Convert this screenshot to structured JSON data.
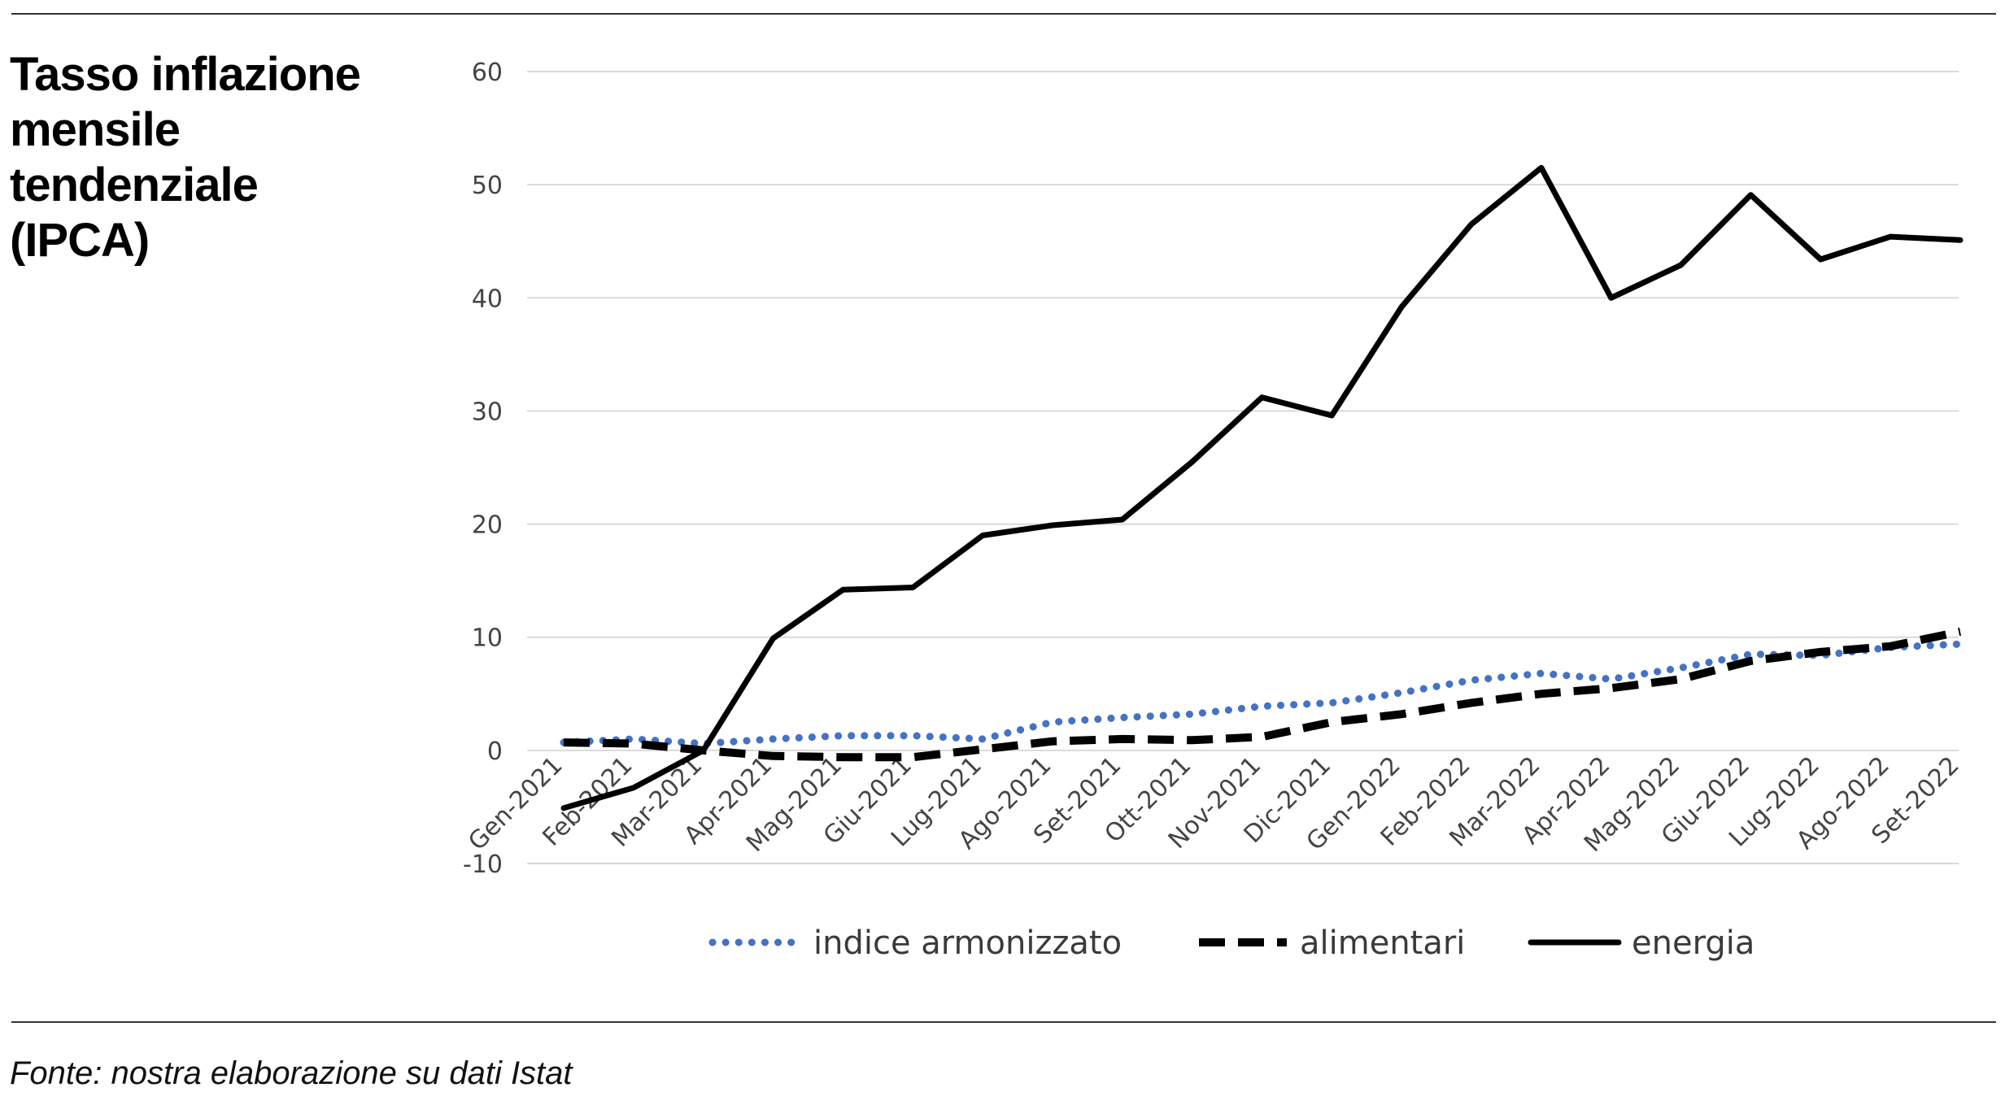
{
  "title_lines": [
    "Tasso inflazione",
    "mensile",
    "tendenziale",
    "(IPCA)"
  ],
  "source": "Fonte: nostra elaborazione su dati Istat",
  "chart_data": {
    "type": "line",
    "title": "Tasso inflazione mensile tendenziale (IPCA)",
    "xlabel": "",
    "ylabel": "",
    "ylim": [
      -10,
      60
    ],
    "yticks": [
      -10,
      0,
      10,
      20,
      30,
      40,
      50,
      60
    ],
    "grid": true,
    "legend_position": "bottom",
    "categories": [
      "Gen-2021",
      "Feb-2021",
      "Mar-2021",
      "Apr-2021",
      "Mag-2021",
      "Giu-2021",
      "Lug-2021",
      "Ago-2021",
      "Set-2021",
      "Ott-2021",
      "Nov-2021",
      "Dic-2021",
      "Gen-2022",
      "Feb-2022",
      "Mar-2022",
      "Apr-2022",
      "Mag-2022",
      "Giu-2022",
      "Lug-2022",
      "Ago-2022",
      "Set-2022"
    ],
    "series": [
      {
        "name": "indice armonizzato",
        "color": "#4472C4",
        "style": "dotted",
        "values": [
          0.7,
          1.0,
          0.6,
          1.0,
          1.3,
          1.3,
          1.0,
          2.5,
          2.9,
          3.2,
          3.9,
          4.2,
          5.1,
          6.2,
          6.8,
          6.3,
          7.3,
          8.5,
          8.4,
          9.1,
          9.4
        ]
      },
      {
        "name": "alimentari",
        "color": "#000000",
        "style": "dashed",
        "values": [
          0.7,
          0.6,
          0.0,
          -0.5,
          -0.6,
          -0.6,
          0.1,
          0.8,
          1.0,
          0.9,
          1.2,
          2.5,
          3.2,
          4.2,
          5.0,
          5.5,
          6.3,
          7.9,
          8.7,
          9.2,
          10.5
        ]
      },
      {
        "name": "energia",
        "color": "#000000",
        "style": "solid",
        "values": [
          -5.1,
          -3.3,
          0.0,
          9.9,
          14.2,
          14.4,
          19.0,
          19.9,
          20.4,
          25.5,
          31.2,
          29.6,
          39.2,
          46.5,
          51.5,
          40.0,
          42.9,
          49.1,
          43.4,
          45.4,
          45.1
        ]
      }
    ]
  }
}
